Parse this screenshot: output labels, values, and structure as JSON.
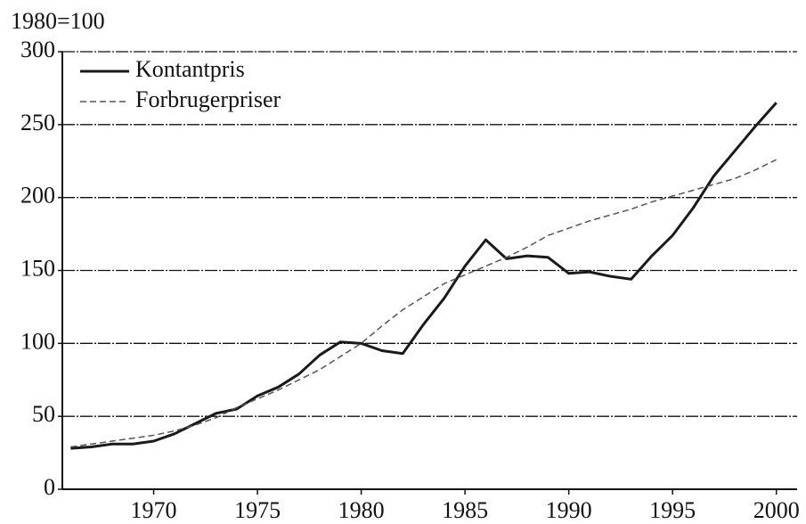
{
  "chart_data": {
    "type": "line",
    "subtitle": "1980=100",
    "x": [
      1966,
      1967,
      1968,
      1969,
      1970,
      1971,
      1972,
      1973,
      1974,
      1975,
      1976,
      1977,
      1978,
      1979,
      1980,
      1981,
      1982,
      1983,
      1984,
      1985,
      1986,
      1987,
      1988,
      1989,
      1990,
      1991,
      1992,
      1993,
      1994,
      1995,
      1996,
      1997,
      1998,
      1999,
      2000
    ],
    "series": [
      {
        "name": "Kontantpris",
        "color": "#1a1a1a",
        "values": [
          28,
          29,
          31,
          31,
          33,
          38,
          45,
          52,
          55,
          64,
          70,
          79,
          92,
          101,
          100,
          95,
          93,
          113,
          131,
          153,
          171,
          158,
          160,
          159,
          148,
          149,
          146,
          144,
          160,
          174,
          193,
          215,
          232,
          249,
          265
        ]
      },
      {
        "name": "Forbrugerpriser",
        "color": "#555555",
        "values": [
          29,
          31,
          33,
          35,
          37,
          40,
          44,
          49,
          56,
          62,
          68,
          75,
          82,
          91,
          100,
          112,
          123,
          132,
          141,
          147,
          153,
          159,
          166,
          174,
          179,
          184,
          188,
          192,
          197,
          201,
          205,
          209,
          213,
          219,
          226
        ]
      }
    ],
    "xlim": [
      1965.6,
      2001
    ],
    "xticks": [
      1970,
      1975,
      1980,
      1985,
      1990,
      1995,
      2000
    ],
    "ylim": [
      0,
      300
    ],
    "yticks": [
      0,
      50,
      100,
      150,
      200,
      250,
      300
    ],
    "grid": true,
    "legend": "upper left"
  }
}
